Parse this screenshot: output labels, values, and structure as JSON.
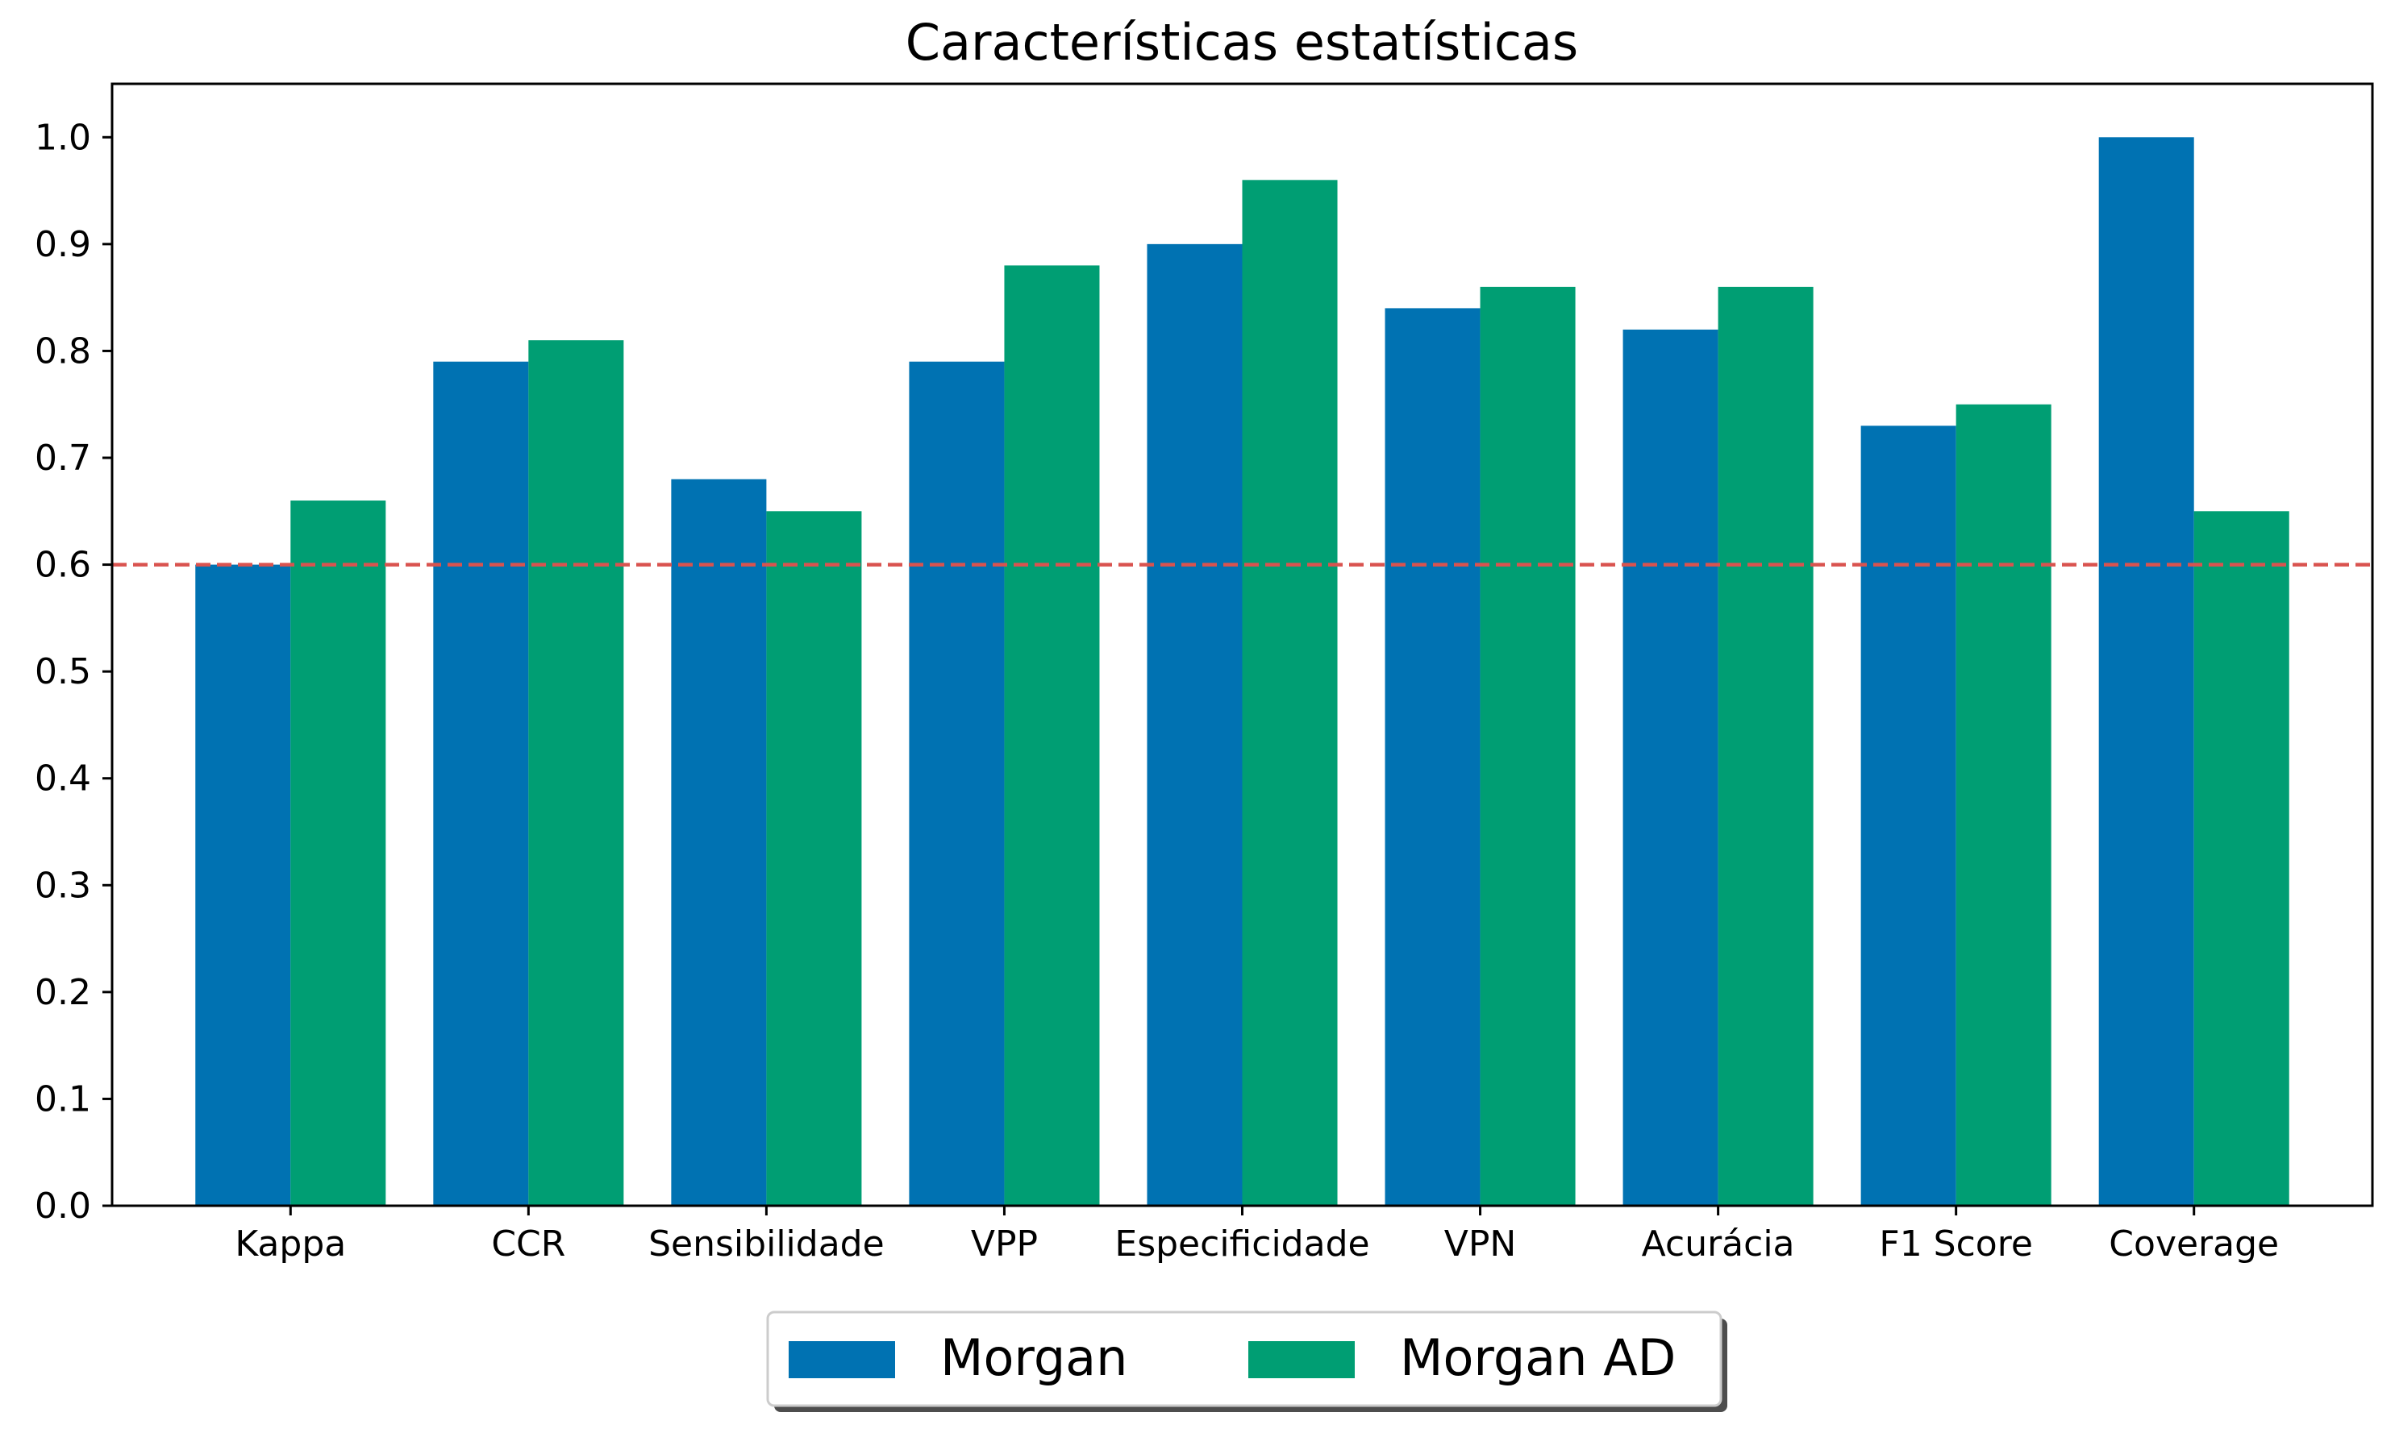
{
  "chart_data": {
    "type": "bar",
    "title": "Características estatísticas",
    "xlabel": "",
    "ylabel": "",
    "categories": [
      "Kappa",
      "CCR",
      "Sensibilidade",
      "VPP",
      "Especificidade",
      "VPN",
      "Acurácia",
      "F1 Score",
      "Coverage"
    ],
    "series": [
      {
        "name": "Morgan",
        "color": "#0072B2",
        "values": [
          0.6,
          0.79,
          0.68,
          0.79,
          0.9,
          0.84,
          0.82,
          0.73,
          1.0
        ]
      },
      {
        "name": "Morgan AD",
        "color": "#009E73",
        "values": [
          0.66,
          0.81,
          0.65,
          0.88,
          0.96,
          0.86,
          0.86,
          0.75,
          0.65
        ]
      }
    ],
    "ylim": [
      0.0,
      1.05
    ],
    "yticks": [
      0.0,
      0.1,
      0.2,
      0.3,
      0.4,
      0.5,
      0.6,
      0.7,
      0.8,
      0.9,
      1.0
    ],
    "ytick_labels": [
      "0.0",
      "0.1",
      "0.2",
      "0.3",
      "0.4",
      "0.5",
      "0.6",
      "0.7",
      "0.8",
      "0.9",
      "1.0"
    ],
    "reference_line": {
      "y": 0.6,
      "color": "#d9534f",
      "style": "dashed"
    },
    "grid": false,
    "legend_position": "bottom-center"
  }
}
